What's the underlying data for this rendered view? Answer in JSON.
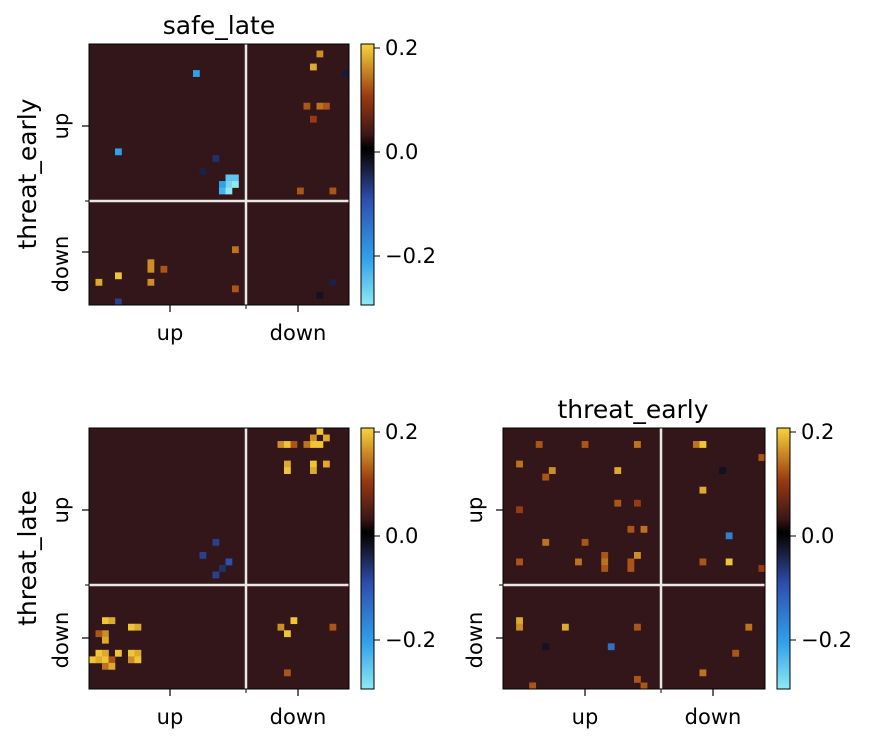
{
  "chart_data": [
    {
      "type": "heatmap",
      "title": "safe_late",
      "ylabel": "threat_early",
      "xlabel": "",
      "xticks": [
        "up",
        "down"
      ],
      "yticks": [
        "up",
        "down"
      ],
      "grid": 40,
      "split": [
        24,
        24
      ],
      "colorbar": {
        "ticks": [
          "0.2",
          "0.0",
          "−0.2"
        ],
        "tick_values": [
          0.2,
          0.0,
          -0.2
        ],
        "range": [
          -0.3,
          0.21
        ]
      },
      "cells": [
        [
          35,
          1,
          0.16
        ],
        [
          34,
          3,
          0.18
        ],
        [
          16,
          4,
          -0.22
        ],
        [
          39,
          4,
          -0.05
        ],
        [
          33,
          9,
          0.12
        ],
        [
          35,
          9,
          0.14
        ],
        [
          36,
          9,
          0.12
        ],
        [
          34,
          11,
          0.1
        ],
        [
          4,
          16,
          -0.22
        ],
        [
          19,
          17,
          -0.08
        ],
        [
          17,
          19,
          -0.06
        ],
        [
          21,
          20,
          -0.26
        ],
        [
          22,
          20,
          -0.26
        ],
        [
          21,
          21,
          -0.28
        ],
        [
          22,
          21,
          -0.3
        ],
        [
          20,
          21,
          -0.22
        ],
        [
          20,
          22,
          -0.24
        ],
        [
          21,
          22,
          -0.3
        ],
        [
          32,
          22,
          0.12
        ],
        [
          37,
          22,
          0.12
        ],
        [
          22,
          31,
          0.14
        ],
        [
          9,
          33,
          0.16
        ],
        [
          11,
          34,
          0.12
        ],
        [
          9,
          34,
          0.16
        ],
        [
          4,
          35,
          0.2
        ],
        [
          1,
          36,
          0.18
        ],
        [
          9,
          36,
          0.16
        ],
        [
          22,
          37,
          0.12
        ],
        [
          37,
          36,
          -0.06
        ],
        [
          35,
          38,
          -0.04
        ],
        [
          4,
          39,
          -0.1
        ]
      ]
    },
    {
      "type": "heatmap",
      "title": "",
      "ylabel": "threat_late",
      "xlabel": "",
      "xticks": [
        "up",
        "down"
      ],
      "yticks": [
        "up",
        "down"
      ],
      "grid": 40,
      "split": [
        24,
        24
      ],
      "colorbar": {
        "ticks": [
          "0.2",
          "0.0",
          "−0.2"
        ],
        "tick_values": [
          0.2,
          0.0,
          -0.2
        ],
        "range": [
          -0.3,
          0.21
        ]
      },
      "cells": [
        [
          35,
          0,
          0.2
        ],
        [
          34,
          1,
          0.16
        ],
        [
          36,
          1,
          0.18
        ],
        [
          29,
          2,
          0.16
        ],
        [
          30,
          2,
          0.2
        ],
        [
          31,
          2,
          0.12
        ],
        [
          34,
          2,
          0.2
        ],
        [
          35,
          2,
          0.2
        ],
        [
          33,
          2,
          0.14
        ],
        [
          30,
          5,
          0.18
        ],
        [
          34,
          5,
          0.2
        ],
        [
          36,
          5,
          0.18
        ],
        [
          30,
          6,
          0.2
        ],
        [
          34,
          6,
          0.18
        ],
        [
          19,
          17,
          -0.1
        ],
        [
          17,
          19,
          -0.1
        ],
        [
          21,
          20,
          -0.12
        ],
        [
          20,
          21,
          -0.08
        ],
        [
          19,
          22,
          -0.1
        ],
        [
          2,
          29,
          0.2
        ],
        [
          3,
          29,
          0.18
        ],
        [
          6,
          30,
          0.2
        ],
        [
          7,
          30,
          0.18
        ],
        [
          2,
          31,
          0.16
        ],
        [
          1,
          31,
          0.12
        ],
        [
          2,
          32,
          0.18
        ],
        [
          1,
          34,
          0.2
        ],
        [
          2,
          34,
          0.18
        ],
        [
          4,
          34,
          0.2
        ],
        [
          6,
          34,
          0.2
        ],
        [
          7,
          34,
          0.18
        ],
        [
          0,
          35,
          0.2
        ],
        [
          1,
          35,
          0.18
        ],
        [
          2,
          35,
          0.2
        ],
        [
          3,
          35,
          0.12
        ],
        [
          6,
          35,
          0.16
        ],
        [
          7,
          35,
          0.2
        ],
        [
          2,
          36,
          0.14
        ],
        [
          3,
          36,
          0.18
        ],
        [
          31,
          29,
          0.2
        ],
        [
          29,
          30,
          0.16
        ],
        [
          30,
          31,
          0.2
        ],
        [
          37,
          30,
          0.12
        ],
        [
          30,
          37,
          0.12
        ]
      ]
    },
    {
      "type": "heatmap",
      "title": "threat_early",
      "ylabel": "",
      "xlabel": "",
      "xticks": [
        "up",
        "down"
      ],
      "yticks": [
        "up",
        "down"
      ],
      "grid": 40,
      "split": [
        24,
        24
      ],
      "colorbar": {
        "ticks": [
          "0.2",
          "0.0",
          "−0.2"
        ],
        "tick_values": [
          0.2,
          0.0,
          -0.2
        ],
        "range": [
          -0.3,
          0.21
        ]
      },
      "cells": [
        [
          5,
          2,
          0.12
        ],
        [
          12,
          2,
          0.12
        ],
        [
          20,
          2,
          0.14
        ],
        [
          29,
          2,
          0.14
        ],
        [
          30,
          2,
          0.2
        ],
        [
          2,
          5,
          0.14
        ],
        [
          39,
          4,
          0.12
        ],
        [
          7,
          6,
          0.16
        ],
        [
          17,
          6,
          0.18
        ],
        [
          6,
          7,
          0.12
        ],
        [
          33,
          6,
          -0.04
        ],
        [
          30,
          9,
          0.18
        ],
        [
          17,
          11,
          0.12
        ],
        [
          20,
          11,
          0.1
        ],
        [
          2,
          12,
          0.1
        ],
        [
          19,
          15,
          0.12
        ],
        [
          21,
          15,
          0.14
        ],
        [
          34,
          16,
          -0.18
        ],
        [
          6,
          17,
          0.14
        ],
        [
          12,
          17,
          0.12
        ],
        [
          15,
          19,
          0.12
        ],
        [
          20,
          19,
          0.16
        ],
        [
          2,
          20,
          0.12
        ],
        [
          11,
          20,
          0.14
        ],
        [
          15,
          20,
          0.14
        ],
        [
          19,
          20,
          0.12
        ],
        [
          30,
          20,
          0.12
        ],
        [
          34,
          20,
          0.2
        ],
        [
          15,
          21,
          0.12
        ],
        [
          19,
          21,
          0.12
        ],
        [
          39,
          21,
          0.1
        ],
        [
          2,
          29,
          0.18
        ],
        [
          2,
          30,
          0.16
        ],
        [
          9,
          30,
          0.18
        ],
        [
          20,
          30,
          0.12
        ],
        [
          37,
          30,
          0.14
        ],
        [
          6,
          33,
          -0.04
        ],
        [
          16,
          33,
          -0.16
        ],
        [
          35,
          34,
          0.12
        ],
        [
          30,
          37,
          0.14
        ],
        [
          20,
          38,
          0.12
        ],
        [
          21,
          39,
          0.12
        ],
        [
          4,
          39,
          0.12
        ]
      ]
    }
  ]
}
